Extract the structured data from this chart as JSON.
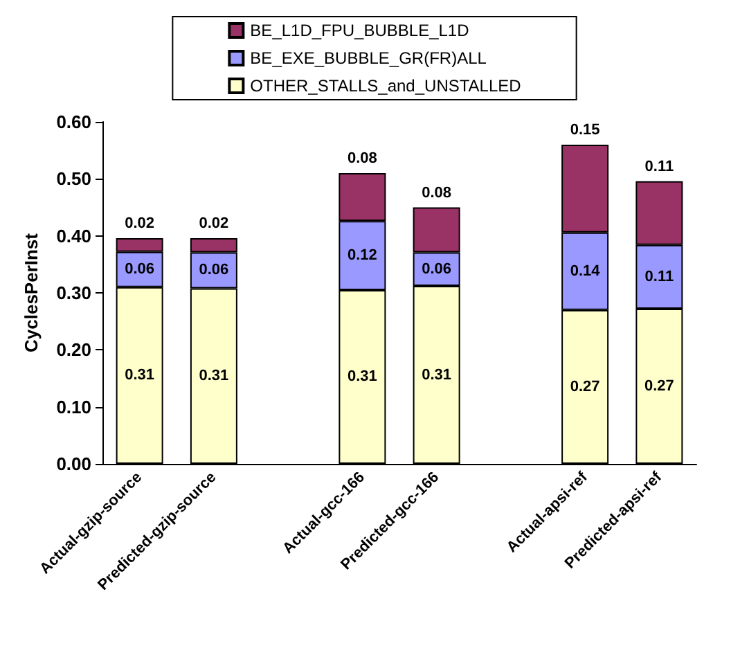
{
  "chart_data": {
    "type": "bar",
    "stacked": true,
    "ylabel": "CyclesPerInst",
    "categories": [
      "Actual-gzip-source",
      "Predicted-gzip-source",
      null,
      "Actual-gcc-166",
      "Predicted-gcc-166",
      null,
      "Actual-apsi-ref",
      "Predicted-apsi-ref"
    ],
    "series": [
      {
        "name": "OTHER_STALLS_and_UNSTALLED",
        "color": "#ffffcc",
        "values": [
          0.31,
          0.308,
          null,
          0.305,
          0.312,
          null,
          0.27,
          0.272
        ],
        "value_labels": [
          "0.31",
          "0.31",
          null,
          "0.31",
          "0.31",
          null,
          "0.27",
          "0.27"
        ]
      },
      {
        "name": "BE_EXE_BUBBLE_GR(FR)ALL",
        "color": "#9999ff",
        "values": [
          0.062,
          0.063,
          null,
          0.121,
          0.059,
          null,
          0.136,
          0.112
        ],
        "value_labels": [
          "0.06",
          "0.06",
          null,
          "0.12",
          "0.06",
          null,
          "0.14",
          "0.11"
        ]
      },
      {
        "name": "BE_L1D_FPU_BUBBLE_L1D",
        "color": "#993366",
        "values": [
          0.024,
          0.025,
          null,
          0.084,
          0.079,
          null,
          0.154,
          0.112
        ],
        "value_labels": [
          "0.02",
          "0.02",
          null,
          "0.08",
          "0.08",
          null,
          "0.15",
          "0.11"
        ]
      }
    ],
    "ylim": [
      0,
      0.6
    ],
    "yticks": [
      {
        "value": 0,
        "label": "0.00"
      },
      {
        "value": 0.1,
        "label": "0.10"
      },
      {
        "value": 0.2,
        "label": "0.20"
      },
      {
        "value": 0.3,
        "label": "0.30"
      },
      {
        "value": 0.4,
        "label": "0.40"
      },
      {
        "value": 0.5,
        "label": "0.50"
      },
      {
        "value": 0.6,
        "label": "0.60"
      }
    ],
    "grid": false,
    "legend": "top"
  }
}
